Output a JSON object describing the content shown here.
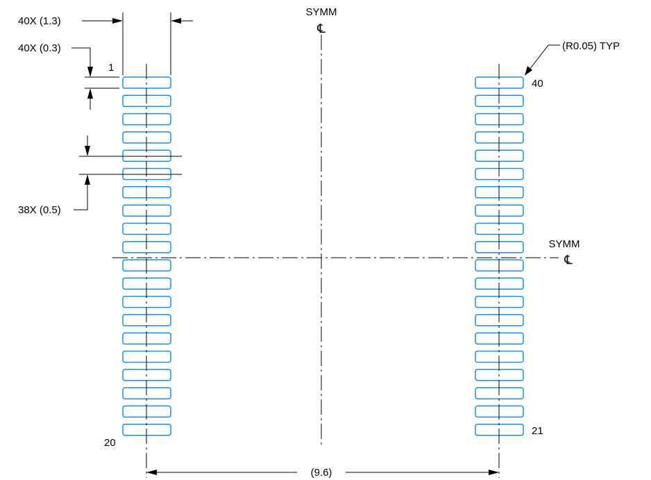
{
  "labels": {
    "top_symm": "SYMM",
    "right_symm": "SYMM",
    "centerline_symbol": "℄",
    "pad_length_dim": "40X (1.3)",
    "pad_width_dim": "40X (0.3)",
    "pitch_dim": "38X (0.5)",
    "corner_radius": "(R0.05) TYP",
    "row_span_dim": "(9.6)"
  },
  "pins": {
    "left_top": "1",
    "left_bottom": "20",
    "right_top": "40",
    "right_bottom": "21"
  },
  "pads_per_side": 20,
  "colors": {
    "pad_outline": "#1a8fe3",
    "lines": "#000000"
  }
}
